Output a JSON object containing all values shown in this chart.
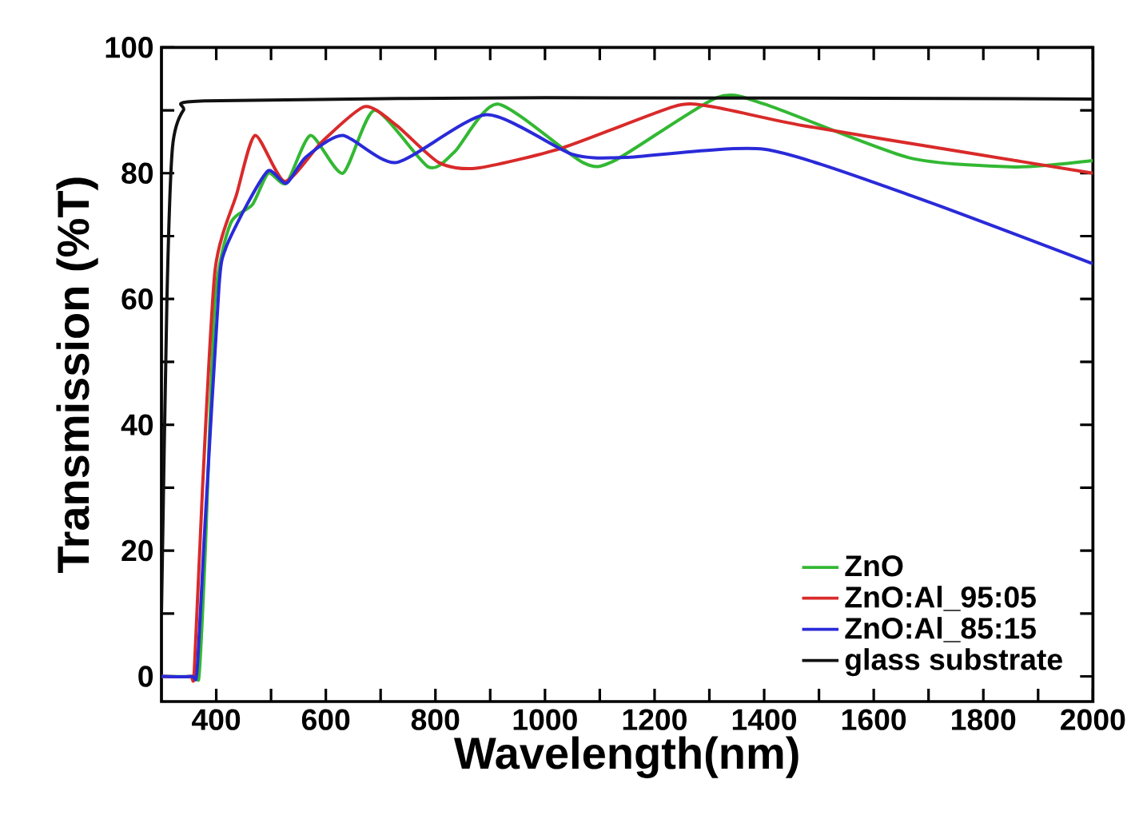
{
  "chart_data": {
    "type": "line",
    "xlabel": "Wavelength(nm)",
    "ylabel": "Transmission (%T)",
    "xlim": [
      300,
      2000
    ],
    "ylim": [
      -4,
      100
    ],
    "xticks": [
      400,
      {
        "value": 500,
        "label": null
      },
      600,
      {
        "value": 700,
        "label": null
      },
      800,
      {
        "value": 900,
        "label": null
      },
      1000,
      {
        "value": 1100,
        "label": null
      },
      1200,
      {
        "value": 1300,
        "label": null
      },
      1400,
      {
        "value": 1500,
        "label": null
      },
      1600,
      {
        "value": 1700,
        "label": null
      },
      1800,
      {
        "value": 1900,
        "label": null
      },
      2000
    ],
    "yticks": [
      0,
      {
        "value": 10,
        "label": null
      },
      20,
      {
        "value": 30,
        "label": null
      },
      40,
      {
        "value": 50,
        "label": null
      },
      60,
      {
        "value": 70,
        "label": null
      },
      80,
      {
        "value": 90,
        "label": null
      },
      100
    ],
    "grid": false,
    "legend": "bottom right",
    "marker": "none",
    "line_style": "solid",
    "series": [
      {
        "name": "ZnO",
        "color": "#33b833",
        "x": [
          300,
          360,
          369,
          380,
          398,
          426,
          466,
          495,
          528,
          572,
          631,
          689,
          787,
          835,
          914,
          1069,
          1127,
          1313,
          1400,
          1663,
          1857,
          2000
        ],
        "values": [
          0,
          0,
          0.5,
          20,
          60,
          72,
          75,
          80,
          78.4,
          86,
          80,
          90,
          81,
          83.4,
          91,
          81.7,
          82,
          92,
          91,
          82.5,
          81,
          82
        ]
      },
      {
        "name": "ZnO:Al_95:05",
        "color": "#d92a2a",
        "x": [
          300,
          352,
          360,
          375,
          398,
          437,
          471,
          525,
          593,
          671,
          729,
          806,
          875,
          1031,
          1235,
          1303,
          1469,
          1761,
          2000
        ],
        "values": [
          0,
          0,
          1,
          30,
          64.7,
          76.6,
          86,
          78.7,
          85,
          90.6,
          87.6,
          81.7,
          80.8,
          84,
          90.6,
          90.6,
          87.6,
          83.4,
          80
        ]
      },
      {
        "name": "ZnO:Al_85:15",
        "color": "#2a2ad9",
        "x": [
          300,
          355,
          365,
          380,
          405,
          417,
          456,
          495,
          528,
          563,
          631,
          729,
          893,
          1050,
          1147,
          1400,
          1663,
          2000
        ],
        "values": [
          0,
          0,
          1,
          25,
          62,
          68,
          75,
          80.4,
          78.4,
          82.5,
          86,
          81.7,
          89.3,
          83,
          82.5,
          83.8,
          76.6,
          65.6
        ]
      },
      {
        "name": "glass substrate",
        "color": "#111111",
        "x": [
          300,
          310,
          320,
          340,
          380,
          1000,
          2000
        ],
        "values": [
          10,
          60,
          84,
          90,
          91.5,
          92,
          91.8
        ]
      }
    ]
  }
}
